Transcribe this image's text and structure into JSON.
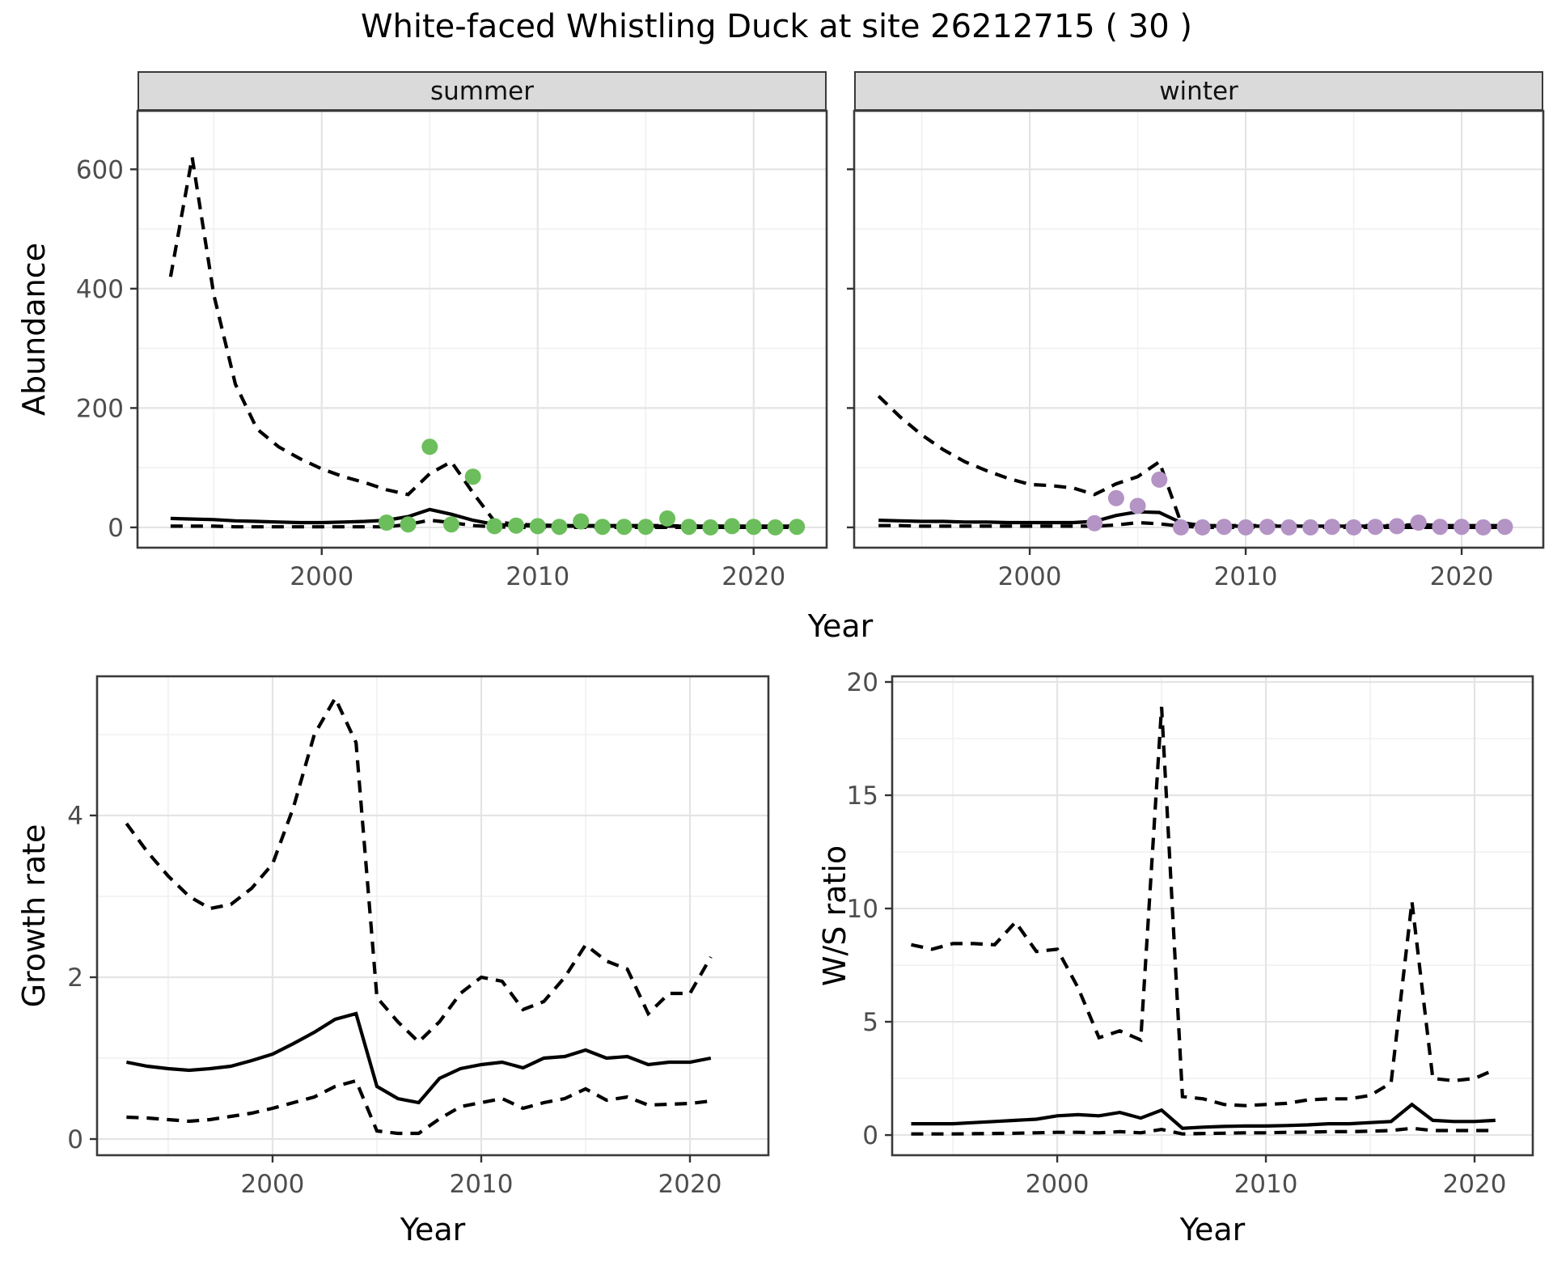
{
  "title": "White-faced Whistling Duck at site 26212715 ( 30 )",
  "colors": {
    "point_summer": "#6CBE5C",
    "point_winter": "#B493C5",
    "line": "#000000",
    "strip_fill": "#DADADA",
    "strip_border": "#3A3A3A",
    "panel_border": "#3A3A3A",
    "grid_major": "#E4E4E4",
    "grid_minor": "#F0F0F0",
    "tick_label": "#4D4D4D"
  },
  "chart_data": [
    {
      "id": "abundance-summer",
      "type": "line",
      "facet_label": "summer",
      "ylabel": "Abundance",
      "xlabel": "Year",
      "xlim": [
        1991.47,
        2023.38
      ],
      "ylim": [
        -34,
        698
      ],
      "xticks": [
        2000,
        2010,
        2020
      ],
      "yticks": [
        0,
        200,
        400,
        600
      ],
      "xticks_minor": [
        1995,
        2005,
        2015
      ],
      "yticks_minor": [
        100,
        300,
        500
      ],
      "show_ytick_labels": true,
      "x": [
        1993,
        1994,
        1995,
        1996,
        1997,
        1998,
        1999,
        2000,
        2001,
        2002,
        2003,
        2004,
        2005,
        2006,
        2007,
        2008,
        2009,
        2010,
        2011,
        2012,
        2013,
        2014,
        2015,
        2016,
        2017,
        2018,
        2019,
        2020,
        2021,
        2022
      ],
      "series": [
        {
          "name": "upper-ci",
          "style": "dashed",
          "values": [
            420,
            620,
            390,
            240,
            165,
            135,
            115,
            98,
            85,
            75,
            63,
            55,
            90,
            110,
            58,
            10,
            5,
            4,
            3,
            3,
            3,
            3,
            3,
            3,
            2,
            2,
            2,
            2,
            2,
            2
          ]
        },
        {
          "name": "lower-ci",
          "style": "dashed",
          "values": [
            2,
            2,
            2,
            1,
            1,
            1,
            1,
            1,
            1,
            1,
            1,
            5,
            12,
            8,
            3,
            1,
            0,
            0,
            0,
            0,
            0,
            0,
            0,
            0,
            0,
            0,
            0,
            0,
            0,
            0
          ]
        },
        {
          "name": "mean",
          "style": "solid",
          "values": [
            15,
            14,
            13,
            11,
            10,
            9,
            8,
            8,
            9,
            10,
            12,
            18,
            30,
            22,
            12,
            5,
            3,
            2,
            2,
            2,
            2,
            2,
            2,
            2,
            2,
            2,
            2,
            2,
            2,
            2
          ]
        }
      ],
      "points": {
        "color_key": "point_summer",
        "x": [
          2003,
          2004,
          2005,
          2006,
          2007,
          2008,
          2009,
          2010,
          2011,
          2012,
          2013,
          2014,
          2015,
          2016,
          2017,
          2018,
          2019,
          2020,
          2021,
          2022
        ],
        "y": [
          8,
          5,
          135,
          5,
          85,
          2,
          3,
          2,
          1,
          10,
          1,
          1,
          1,
          15,
          1,
          0,
          2,
          1,
          0,
          1
        ]
      }
    },
    {
      "id": "abundance-winter",
      "type": "line",
      "facet_label": "winter",
      "ylabel": "Abundance",
      "xlabel": "Year",
      "xlim": [
        1991.87,
        2023.78
      ],
      "ylim": [
        -34,
        698
      ],
      "xticks": [
        2000,
        2010,
        2020
      ],
      "yticks": [
        0,
        200,
        400,
        600
      ],
      "xticks_minor": [
        1995,
        2005,
        2015
      ],
      "yticks_minor": [
        100,
        300,
        500
      ],
      "show_ytick_labels": false,
      "x": [
        1993,
        1994,
        1995,
        1996,
        1997,
        1998,
        1999,
        2000,
        2001,
        2002,
        2003,
        2004,
        2005,
        2006,
        2007,
        2008,
        2009,
        2010,
        2011,
        2012,
        2013,
        2014,
        2015,
        2016,
        2017,
        2018,
        2019,
        2020,
        2021,
        2022
      ],
      "series": [
        {
          "name": "upper-ci",
          "style": "dashed",
          "values": [
            220,
            185,
            155,
            130,
            110,
            95,
            82,
            72,
            70,
            66,
            55,
            73,
            85,
            110,
            8,
            3,
            3,
            3,
            3,
            3,
            3,
            3,
            3,
            3,
            3,
            5,
            3,
            3,
            3,
            3
          ]
        },
        {
          "name": "lower-ci",
          "style": "dashed",
          "values": [
            3,
            3,
            2,
            2,
            2,
            2,
            2,
            2,
            2,
            2,
            2,
            4,
            8,
            6,
            2,
            0,
            0,
            0,
            0,
            0,
            0,
            0,
            0,
            0,
            0,
            0,
            0,
            0,
            0,
            0
          ]
        },
        {
          "name": "mean",
          "style": "solid",
          "values": [
            12,
            11,
            10,
            10,
            9,
            9,
            8,
            8,
            8,
            8,
            10,
            20,
            26,
            25,
            8,
            2,
            2,
            2,
            2,
            2,
            2,
            2,
            2,
            2,
            2,
            4,
            2,
            2,
            2,
            2
          ]
        }
      ],
      "points": {
        "color_key": "point_winter",
        "x": [
          2003,
          2004,
          2005,
          2006,
          2007,
          2008,
          2009,
          2010,
          2011,
          2012,
          2013,
          2014,
          2015,
          2016,
          2017,
          2018,
          2019,
          2020,
          2021,
          2022
        ],
        "y": [
          7,
          49,
          36,
          80,
          0,
          0,
          1,
          0,
          1,
          0,
          0,
          1,
          0,
          1,
          2,
          8,
          1,
          1,
          0,
          1
        ]
      }
    },
    {
      "id": "growth-rate",
      "type": "line",
      "facet_label": "",
      "ylabel": "Growth rate",
      "xlabel": "Year",
      "xlim": [
        1991.59,
        2023.76
      ],
      "ylim": [
        -0.2,
        5.72
      ],
      "xticks": [
        2000,
        2010,
        2020
      ],
      "yticks": [
        0,
        2,
        4
      ],
      "xticks_minor": [
        1995,
        2005,
        2015
      ],
      "yticks_minor": [
        1,
        3,
        5
      ],
      "show_ytick_labels": true,
      "x": [
        1993,
        1994,
        1995,
        1996,
        1997,
        1998,
        1999,
        2000,
        2001,
        2002,
        2003,
        2004,
        2005,
        2006,
        2007,
        2008,
        2009,
        2010,
        2011,
        2012,
        2013,
        2014,
        2015,
        2016,
        2017,
        2018,
        2019,
        2020,
        2021
      ],
      "series": [
        {
          "name": "upper-ci",
          "style": "dashed",
          "values": [
            3.9,
            3.55,
            3.25,
            3.0,
            2.85,
            2.9,
            3.1,
            3.4,
            4.1,
            5.0,
            5.45,
            4.9,
            1.75,
            1.45,
            1.2,
            1.45,
            1.8,
            2.0,
            1.95,
            1.6,
            1.7,
            2.0,
            2.4,
            2.2,
            2.1,
            1.55,
            1.8,
            1.8,
            2.25
          ]
        },
        {
          "name": "lower-ci",
          "style": "dashed",
          "values": [
            0.27,
            0.26,
            0.24,
            0.22,
            0.24,
            0.28,
            0.32,
            0.38,
            0.45,
            0.52,
            0.65,
            0.72,
            0.1,
            0.07,
            0.07,
            0.25,
            0.4,
            0.45,
            0.5,
            0.38,
            0.45,
            0.5,
            0.62,
            0.48,
            0.52,
            0.42,
            0.43,
            0.44,
            0.47
          ]
        },
        {
          "name": "mean",
          "style": "solid",
          "values": [
            0.95,
            0.9,
            0.87,
            0.85,
            0.87,
            0.9,
            0.97,
            1.05,
            1.18,
            1.32,
            1.48,
            1.55,
            0.65,
            0.5,
            0.45,
            0.75,
            0.87,
            0.92,
            0.95,
            0.88,
            1.0,
            1.02,
            1.1,
            1.0,
            1.02,
            0.92,
            0.95,
            0.95,
            1.0
          ]
        }
      ],
      "points": null
    },
    {
      "id": "ws-ratio",
      "type": "line",
      "facet_label": "",
      "ylabel": "W/S ratio",
      "xlabel": "Year",
      "xlim": [
        1992.09,
        2022.79
      ],
      "ylim": [
        -0.89,
        20.25
      ],
      "xticks": [
        2000,
        2010,
        2020
      ],
      "yticks": [
        0,
        5,
        10,
        15,
        20
      ],
      "xticks_minor": [
        1995,
        2005,
        2015
      ],
      "yticks_minor": [
        2.5,
        7.5,
        12.5,
        17.5
      ],
      "show_ytick_labels": true,
      "x": [
        1993,
        1994,
        1995,
        1996,
        1997,
        1998,
        1999,
        2000,
        2001,
        2002,
        2003,
        2004,
        2005,
        2006,
        2007,
        2008,
        2009,
        2010,
        2011,
        2012,
        2013,
        2014,
        2015,
        2016,
        2017,
        2018,
        2019,
        2020,
        2021
      ],
      "series": [
        {
          "name": "upper-ci",
          "style": "dashed",
          "values": [
            8.4,
            8.2,
            8.45,
            8.45,
            8.4,
            9.4,
            8.1,
            8.2,
            6.5,
            4.3,
            4.6,
            4.2,
            18.9,
            1.7,
            1.6,
            1.35,
            1.3,
            1.35,
            1.4,
            1.55,
            1.6,
            1.6,
            1.75,
            2.3,
            10.3,
            2.5,
            2.4,
            2.5,
            2.9
          ]
        },
        {
          "name": "lower-ci",
          "style": "dashed",
          "values": [
            0.05,
            0.05,
            0.05,
            0.06,
            0.07,
            0.08,
            0.1,
            0.12,
            0.12,
            0.1,
            0.15,
            0.1,
            0.25,
            0.05,
            0.07,
            0.08,
            0.1,
            0.1,
            0.12,
            0.13,
            0.15,
            0.15,
            0.17,
            0.2,
            0.3,
            0.2,
            0.2,
            0.2,
            0.2
          ]
        },
        {
          "name": "mean",
          "style": "solid",
          "values": [
            0.5,
            0.5,
            0.5,
            0.55,
            0.6,
            0.65,
            0.7,
            0.85,
            0.9,
            0.85,
            1.0,
            0.75,
            1.1,
            0.3,
            0.35,
            0.38,
            0.4,
            0.4,
            0.42,
            0.45,
            0.5,
            0.5,
            0.55,
            0.6,
            1.35,
            0.65,
            0.6,
            0.6,
            0.65
          ]
        }
      ],
      "points": null
    }
  ]
}
